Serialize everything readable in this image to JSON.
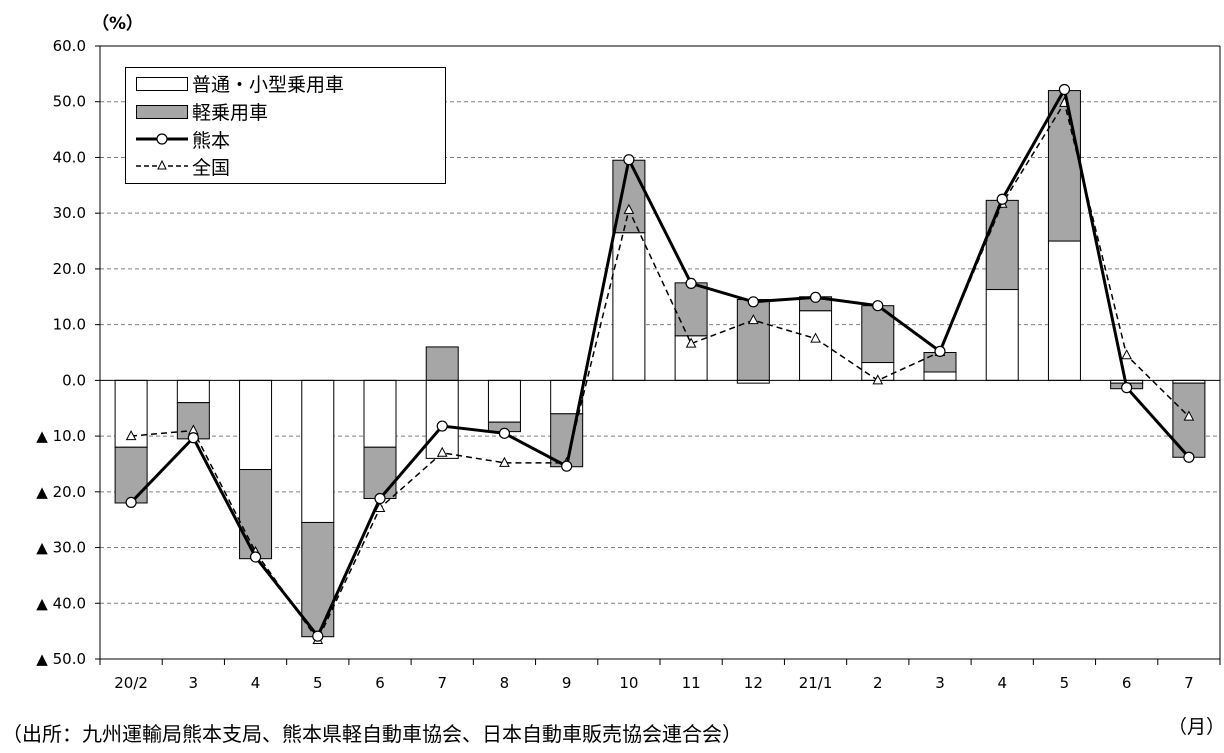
{
  "y_unit": "（%）",
  "x_unit": "（月）",
  "source": "（出所：九州運輸局熊本支局、熊本県軽自動車協会、日本自動車販売協会連合会）",
  "colors": {
    "futsu_fill": "#ffffff",
    "kei_fill": "#a6a6a6",
    "bar_stroke": "#000000",
    "kumamoto_line": "#000000",
    "national_line": "#000000",
    "grid": "#808080"
  },
  "chart_data": {
    "type": "bar",
    "stacked": true,
    "categories": [
      "20/2",
      "3",
      "4",
      "5",
      "6",
      "7",
      "8",
      "9",
      "10",
      "11",
      "12",
      "21/1",
      "2",
      "3",
      "4",
      "5",
      "6",
      "7"
    ],
    "ylim": [
      -50,
      60
    ],
    "yticks": [
      60,
      50,
      40,
      30,
      20,
      10,
      0,
      -10,
      -20,
      -30,
      -40,
      -50
    ],
    "ytick_labels": [
      "60.0",
      "50.0",
      "40.0",
      "30.0",
      "20.0",
      "10.0",
      "0.0",
      "▲ 10.0",
      "▲ 20.0",
      "▲ 30.0",
      "▲ 40.0",
      "▲ 50.0"
    ],
    "grid": true,
    "legend_position": "top-left",
    "series": [
      {
        "name": "普通・小型乗用車",
        "kind": "bar",
        "values": [
          -12,
          -4,
          -16,
          -25.5,
          -12,
          -14,
          -7.5,
          -6,
          26.5,
          8,
          -0.5,
          12.5,
          3.2,
          1.5,
          16.3,
          25,
          -0.5,
          -0.5
        ]
      },
      {
        "name": "軽乗用車",
        "kind": "bar",
        "values": [
          -10,
          -6.5,
          -16,
          -20.5,
          -9.2,
          6,
          -1.7,
          -9.5,
          13,
          9.5,
          14.5,
          2.5,
          10.2,
          3.5,
          16,
          27,
          -1,
          -13.3
        ]
      },
      {
        "name": "熊本",
        "kind": "line",
        "marker": "circle",
        "values": [
          -21.9,
          -10.3,
          -31.7,
          -45.9,
          -21.2,
          -8.2,
          -9.5,
          -15.4,
          39.6,
          17.4,
          14.1,
          14.9,
          13.4,
          5.2,
          32.5,
          52.2,
          -1.3,
          -13.8
        ]
      },
      {
        "name": "全国",
        "kind": "line",
        "marker": "triangle",
        "dashed": true,
        "values": [
          -10,
          -9,
          -30.8,
          -46.6,
          -22.9,
          -13,
          -14.8,
          -14.8,
          30.6,
          6.6,
          10.8,
          7.5,
          0,
          5.1,
          31.7,
          49.8,
          4.5,
          -6.5
        ]
      }
    ]
  }
}
